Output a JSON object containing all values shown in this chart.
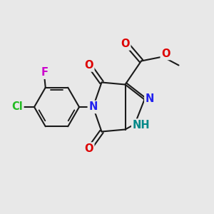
{
  "bg_color": "#e8e8e8",
  "bond_color": "#1a1a1a",
  "bond_lw": 1.5,
  "colors": {
    "N": "#2222ee",
    "O": "#dd0000",
    "F": "#cc00cc",
    "Cl": "#22bb22",
    "NH": "#008888"
  },
  "fs": 10.5
}
